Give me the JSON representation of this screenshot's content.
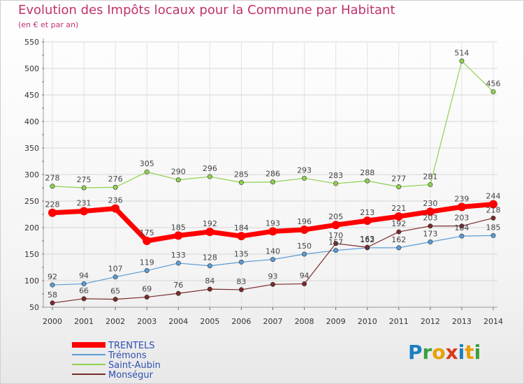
{
  "title": "Evolution des Impôts locaux pour la Commune par Habitant",
  "subtitle": "(en € et par an)",
  "brand": {
    "letters": [
      "P",
      "r",
      "o",
      "x",
      "i",
      "t",
      "i"
    ],
    "colors": [
      "#1a7fc1",
      "#3b9e3b",
      "#e8a000",
      "#d93a1a",
      "#1a7fc1",
      "#e8a000",
      "#3b9e3b"
    ]
  },
  "chart_data": {
    "type": "line",
    "x": [
      "2000",
      "2001",
      "2002",
      "2003",
      "2004",
      "2005",
      "2006",
      "2007",
      "2008",
      "2009",
      "2010",
      "2011",
      "2012",
      "2013",
      "2014"
    ],
    "ylim": [
      50,
      550
    ],
    "yticks": [
      50,
      100,
      150,
      200,
      250,
      300,
      350,
      400,
      450,
      500,
      550
    ],
    "grid": true,
    "legend_position": "bottom-left",
    "series": [
      {
        "name": "TRENTELS",
        "color": "#ff0000",
        "width": 7,
        "values": [
          228,
          231,
          236,
          175,
          185,
          192,
          184,
          193,
          196,
          205,
          213,
          221,
          230,
          239,
          244
        ]
      },
      {
        "name": "Trémons",
        "color": "#5b9bd5",
        "width": 1.2,
        "values": [
          92,
          94,
          107,
          119,
          133,
          128,
          135,
          140,
          150,
          157,
          162,
          162,
          173,
          184,
          185
        ]
      },
      {
        "name": "Saint-Aubin",
        "color": "#8ed14f",
        "width": 1.2,
        "values": [
          278,
          275,
          276,
          305,
          290,
          296,
          285,
          286,
          293,
          283,
          288,
          277,
          281,
          514,
          456
        ]
      },
      {
        "name": "Monségur",
        "color": "#7a2a2a",
        "width": 1.2,
        "values": [
          58,
          66,
          65,
          69,
          76,
          84,
          83,
          93,
          94,
          170,
          163,
          192,
          203,
          203,
          218
        ]
      }
    ]
  }
}
